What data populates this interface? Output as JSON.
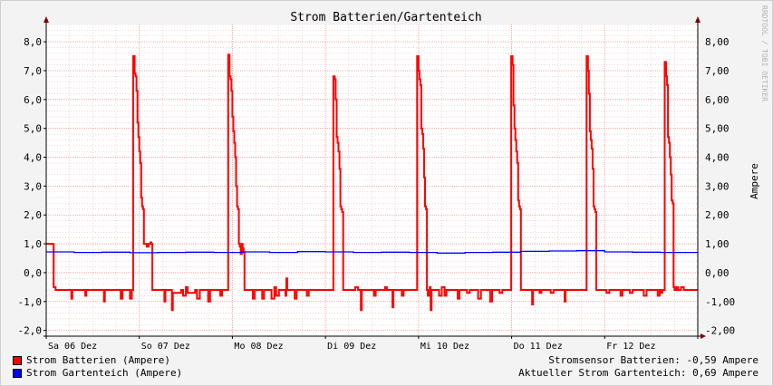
{
  "chart_data": {
    "type": "line",
    "title": "Strom Batterien/Gartenteich",
    "ylabel_right": "Ampere",
    "watermark": "RRDTOOL / TOBI OETIKER",
    "ylim": [
      -2.2,
      8.6
    ],
    "y_ticks_left": [
      "8,0",
      "7,0",
      "6,0",
      "5,0",
      "4,0",
      "3,0",
      "2,0",
      "1,0",
      "0,0",
      "-1,0",
      "-2,0"
    ],
    "y_ticks_right": [
      "8,00",
      "7,00",
      "6,00",
      "5,00",
      "4,00",
      "3,00",
      "2,00",
      "1,00",
      "0,00",
      "-1,00",
      "-2,00"
    ],
    "y_tick_values": [
      8,
      7,
      6,
      5,
      4,
      3,
      2,
      1,
      0,
      -1,
      -2
    ],
    "x_range": [
      0,
      7
    ],
    "x_ticks": [
      "Sa 06 Dez",
      "So 07 Dez",
      "Mo 08 Dez",
      "Di 09 Dez",
      "Mi 10 Dez",
      "Do 11 Dez",
      "Fr 12 Dez"
    ],
    "grid": true,
    "colors": {
      "batterien": "#ff0000",
      "gartenteich": "#0000ff",
      "grid_major": "#ff9090",
      "grid_minor": "#e8bcbc"
    },
    "series": [
      {
        "name": "Strom Batterien (Ampere)",
        "color": "#ff0000",
        "points": [
          [
            0.0,
            1.0
          ],
          [
            0.07,
            1.0
          ],
          [
            0.08,
            -0.5
          ],
          [
            0.1,
            -0.6
          ],
          [
            0.25,
            -0.6
          ],
          [
            0.27,
            -0.9
          ],
          [
            0.28,
            -0.6
          ],
          [
            0.4,
            -0.6
          ],
          [
            0.42,
            -0.8
          ],
          [
            0.43,
            -0.6
          ],
          [
            0.6,
            -0.6
          ],
          [
            0.62,
            -1.0
          ],
          [
            0.63,
            -0.6
          ],
          [
            0.78,
            -0.6
          ],
          [
            0.8,
            -0.9
          ],
          [
            0.82,
            -0.6
          ],
          [
            0.88,
            -0.6
          ],
          [
            0.9,
            -0.9
          ],
          [
            0.92,
            -0.6
          ],
          [
            0.93,
            -0.6
          ],
          [
            0.935,
            7.5
          ],
          [
            0.95,
            6.9
          ],
          [
            0.96,
            6.8
          ],
          [
            0.97,
            6.3
          ],
          [
            0.98,
            5.2
          ],
          [
            0.99,
            4.7
          ],
          [
            1.0,
            4.2
          ],
          [
            1.01,
            3.8
          ],
          [
            1.02,
            2.6
          ],
          [
            1.03,
            2.3
          ],
          [
            1.04,
            2.2
          ],
          [
            1.05,
            1.0
          ],
          [
            1.06,
            1.0
          ],
          [
            1.08,
            0.9
          ],
          [
            1.1,
            1.0
          ],
          [
            1.12,
            1.05
          ],
          [
            1.13,
            1.0
          ],
          [
            1.14,
            -0.6
          ],
          [
            1.25,
            -0.6
          ],
          [
            1.27,
            -1.0
          ],
          [
            1.28,
            -0.6
          ],
          [
            1.33,
            -0.6
          ],
          [
            1.35,
            -1.3
          ],
          [
            1.36,
            -0.7
          ],
          [
            1.45,
            -0.6
          ],
          [
            1.47,
            -0.8
          ],
          [
            1.5,
            -0.5
          ],
          [
            1.52,
            -0.7
          ],
          [
            1.6,
            -0.6
          ],
          [
            1.62,
            -0.9
          ],
          [
            1.65,
            -0.6
          ],
          [
            1.72,
            -0.6
          ],
          [
            1.74,
            -1.0
          ],
          [
            1.76,
            -0.6
          ],
          [
            1.85,
            -0.6
          ],
          [
            1.87,
            -0.8
          ],
          [
            1.89,
            -0.6
          ],
          [
            1.95,
            -0.6
          ],
          [
            1.955,
            7.55
          ],
          [
            1.97,
            6.8
          ],
          [
            1.98,
            6.7
          ],
          [
            1.99,
            6.3
          ],
          [
            2.0,
            5.4
          ],
          [
            2.01,
            4.9
          ],
          [
            2.02,
            4.5
          ],
          [
            2.03,
            4.0
          ],
          [
            2.04,
            3.0
          ],
          [
            2.05,
            2.3
          ],
          [
            2.06,
            2.2
          ],
          [
            2.07,
            1.0
          ],
          [
            2.08,
            0.9
          ],
          [
            2.09,
            0.65
          ],
          [
            2.1,
            1.0
          ],
          [
            2.11,
            0.85
          ],
          [
            2.12,
            0.7
          ],
          [
            2.13,
            -0.6
          ],
          [
            2.2,
            -0.6
          ],
          [
            2.22,
            -0.9
          ],
          [
            2.24,
            -0.6
          ],
          [
            2.3,
            -0.6
          ],
          [
            2.32,
            -0.9
          ],
          [
            2.34,
            -0.6
          ],
          [
            2.4,
            -0.6
          ],
          [
            2.42,
            -0.9
          ],
          [
            2.45,
            -0.5
          ],
          [
            2.47,
            -0.8
          ],
          [
            2.5,
            -0.6
          ],
          [
            2.55,
            -0.6
          ],
          [
            2.57,
            -0.8
          ],
          [
            2.58,
            -0.2
          ],
          [
            2.59,
            -0.6
          ],
          [
            2.65,
            -0.6
          ],
          [
            2.67,
            -0.9
          ],
          [
            2.69,
            -0.6
          ],
          [
            2.78,
            -0.6
          ],
          [
            2.8,
            -0.8
          ],
          [
            2.82,
            -0.6
          ],
          [
            3.08,
            -0.6
          ],
          [
            3.085,
            6.8
          ],
          [
            3.1,
            6.7
          ],
          [
            3.11,
            6.0
          ],
          [
            3.12,
            4.7
          ],
          [
            3.13,
            4.5
          ],
          [
            3.14,
            4.2
          ],
          [
            3.15,
            3.6
          ],
          [
            3.16,
            2.3
          ],
          [
            3.17,
            2.2
          ],
          [
            3.18,
            2.1
          ],
          [
            3.19,
            -0.6
          ],
          [
            3.3,
            -0.6
          ],
          [
            3.32,
            -0.5
          ],
          [
            3.35,
            -0.6
          ],
          [
            3.38,
            -1.3
          ],
          [
            3.39,
            -0.6
          ],
          [
            3.5,
            -0.6
          ],
          [
            3.52,
            -0.8
          ],
          [
            3.54,
            -0.6
          ],
          [
            3.62,
            -0.6
          ],
          [
            3.64,
            -0.5
          ],
          [
            3.66,
            -0.6
          ],
          [
            3.7,
            -0.6
          ],
          [
            3.72,
            -1.2
          ],
          [
            3.73,
            -0.6
          ],
          [
            3.8,
            -0.6
          ],
          [
            3.82,
            -0.8
          ],
          [
            3.84,
            -0.6
          ],
          [
            3.98,
            -0.6
          ],
          [
            3.985,
            7.5
          ],
          [
            4.0,
            7.0
          ],
          [
            4.01,
            6.7
          ],
          [
            4.02,
            6.5
          ],
          [
            4.03,
            5.0
          ],
          [
            4.04,
            4.8
          ],
          [
            4.05,
            4.3
          ],
          [
            4.06,
            3.3
          ],
          [
            4.07,
            2.3
          ],
          [
            4.08,
            2.2
          ],
          [
            4.09,
            -0.6
          ],
          [
            4.1,
            -0.8
          ],
          [
            4.12,
            -0.5
          ],
          [
            4.13,
            -1.3
          ],
          [
            4.14,
            -0.6
          ],
          [
            4.2,
            -0.6
          ],
          [
            4.22,
            -0.8
          ],
          [
            4.25,
            -0.5
          ],
          [
            4.28,
            -0.8
          ],
          [
            4.3,
            -0.6
          ],
          [
            4.4,
            -0.6
          ],
          [
            4.42,
            -0.9
          ],
          [
            4.44,
            -0.6
          ],
          [
            4.5,
            -0.6
          ],
          [
            4.52,
            -0.7
          ],
          [
            4.55,
            -0.6
          ],
          [
            4.62,
            -0.6
          ],
          [
            4.64,
            -0.9
          ],
          [
            4.67,
            -0.6
          ],
          [
            4.75,
            -0.6
          ],
          [
            4.77,
            -1.0
          ],
          [
            4.79,
            -0.6
          ],
          [
            4.85,
            -0.6
          ],
          [
            4.87,
            -0.7
          ],
          [
            4.9,
            -0.6
          ],
          [
            4.99,
            -0.6
          ],
          [
            4.995,
            7.5
          ],
          [
            5.01,
            7.2
          ],
          [
            5.02,
            5.8
          ],
          [
            5.03,
            5.0
          ],
          [
            5.04,
            4.6
          ],
          [
            5.05,
            4.2
          ],
          [
            5.06,
            3.8
          ],
          [
            5.07,
            2.5
          ],
          [
            5.08,
            2.3
          ],
          [
            5.09,
            2.2
          ],
          [
            5.1,
            -0.6
          ],
          [
            5.2,
            -0.6
          ],
          [
            5.22,
            -1.1
          ],
          [
            5.23,
            -0.6
          ],
          [
            5.28,
            -0.6
          ],
          [
            5.3,
            -0.7
          ],
          [
            5.32,
            -0.6
          ],
          [
            5.4,
            -0.6
          ],
          [
            5.42,
            -0.7
          ],
          [
            5.45,
            -0.6
          ],
          [
            5.55,
            -0.6
          ],
          [
            5.57,
            -1.0
          ],
          [
            5.58,
            -0.6
          ],
          [
            5.65,
            -0.6
          ],
          [
            5.67,
            -0.6
          ],
          [
            5.8,
            -0.6
          ],
          [
            5.805,
            7.5
          ],
          [
            5.82,
            7.0
          ],
          [
            5.83,
            6.2
          ],
          [
            5.84,
            4.9
          ],
          [
            5.85,
            4.6
          ],
          [
            5.86,
            4.3
          ],
          [
            5.87,
            3.6
          ],
          [
            5.88,
            2.3
          ],
          [
            5.89,
            2.2
          ],
          [
            5.9,
            2.1
          ],
          [
            5.91,
            -0.6
          ],
          [
            6.0,
            -0.6
          ],
          [
            6.02,
            -0.7
          ],
          [
            6.05,
            -0.6
          ],
          [
            6.15,
            -0.6
          ],
          [
            6.17,
            -0.8
          ],
          [
            6.19,
            -0.6
          ],
          [
            6.25,
            -0.6
          ],
          [
            6.27,
            -0.7
          ],
          [
            6.3,
            -0.6
          ],
          [
            6.4,
            -0.6
          ],
          [
            6.42,
            -0.8
          ],
          [
            6.45,
            -0.6
          ],
          [
            6.55,
            -0.6
          ],
          [
            6.57,
            -0.8
          ],
          [
            6.59,
            -0.6
          ],
          [
            6.6,
            -0.7
          ],
          [
            6.62,
            -0.6
          ],
          [
            6.64,
            -0.6
          ],
          [
            6.645,
            7.3
          ],
          [
            6.66,
            6.8
          ],
          [
            6.67,
            6.5
          ],
          [
            6.68,
            4.7
          ],
          [
            6.69,
            4.5
          ],
          [
            6.7,
            4.0
          ],
          [
            6.71,
            3.4
          ],
          [
            6.72,
            2.5
          ],
          [
            6.73,
            2.4
          ],
          [
            6.74,
            -0.5
          ],
          [
            6.75,
            -0.6
          ],
          [
            6.77,
            -0.5
          ],
          [
            6.79,
            -0.6
          ],
          [
            6.82,
            -0.5
          ],
          [
            6.85,
            -0.6
          ],
          [
            7.0,
            -0.6
          ]
        ]
      },
      {
        "name": "Strom Gartenteich (Ampere)",
        "color": "#0000ff",
        "points": [
          [
            0.0,
            0.72
          ],
          [
            0.3,
            0.7
          ],
          [
            0.6,
            0.71
          ],
          [
            0.9,
            0.69
          ],
          [
            1.2,
            0.7
          ],
          [
            1.5,
            0.71
          ],
          [
            1.8,
            0.7
          ],
          [
            2.1,
            0.72
          ],
          [
            2.4,
            0.7
          ],
          [
            2.7,
            0.73
          ],
          [
            3.0,
            0.72
          ],
          [
            3.3,
            0.7
          ],
          [
            3.6,
            0.71
          ],
          [
            3.9,
            0.7
          ],
          [
            4.2,
            0.68
          ],
          [
            4.5,
            0.7
          ],
          [
            4.8,
            0.71
          ],
          [
            5.1,
            0.74
          ],
          [
            5.4,
            0.75
          ],
          [
            5.7,
            0.76
          ],
          [
            6.0,
            0.72
          ],
          [
            6.3,
            0.71
          ],
          [
            6.6,
            0.7
          ],
          [
            6.9,
            0.7
          ],
          [
            7.0,
            0.69
          ]
        ]
      }
    ]
  },
  "legend": [
    {
      "label": "Strom Batterien (Ampere)",
      "color": "#ff0000"
    },
    {
      "label": "Strom Gartenteich (Ampere)",
      "color": "#0000ff"
    }
  ],
  "readout": {
    "batterien": "Stromsensor Batterien: -0,59 Ampere",
    "gartenteich": "Aktueller Strom Gartenteich: 0,69 Ampere"
  }
}
